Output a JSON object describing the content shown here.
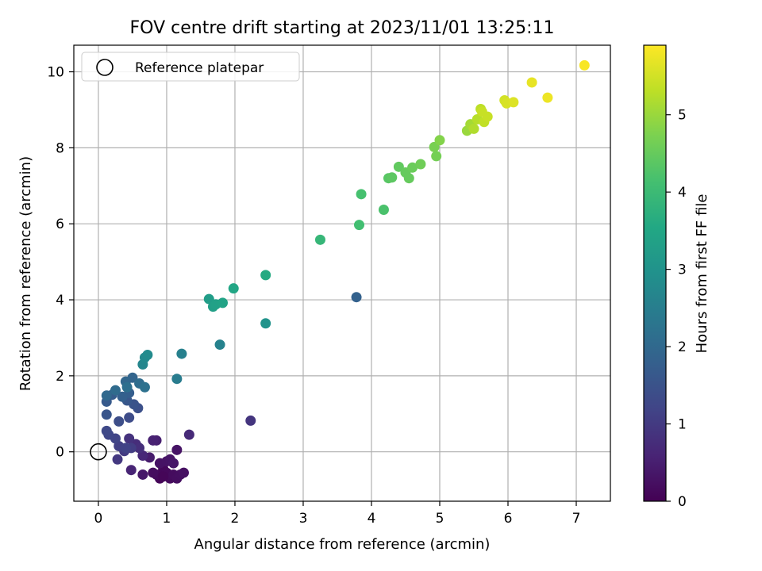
{
  "chart_data": {
    "type": "scatter",
    "title": "FOV centre drift starting at 2023/11/01 13:25:11",
    "xlabel": "Angular distance from reference (arcmin)",
    "ylabel": "Rotation from reference (arcmin)",
    "xlim": [
      -0.36,
      7.5
    ],
    "ylim": [
      -1.3,
      10.7
    ],
    "xticks": [
      0,
      1,
      2,
      3,
      4,
      5,
      6,
      7
    ],
    "yticks": [
      0,
      2,
      4,
      6,
      8,
      10
    ],
    "grid": true,
    "legend": {
      "placement": "top-left",
      "entries": [
        "Reference platepar"
      ]
    },
    "reference_point": {
      "x": 0,
      "y": 0,
      "marker": "open-circle"
    },
    "colorbar": {
      "label": "Hours from first FF file",
      "colormap": "viridis",
      "range": [
        0,
        5.9
      ],
      "ticks": [
        0,
        1,
        2,
        3,
        4,
        5
      ]
    },
    "series": [
      {
        "columns": [
          "x",
          "y",
          "hours"
        ],
        "points": [
          [
            0.9,
            -0.7,
            0.05
          ],
          [
            0.95,
            -0.45,
            0.1
          ],
          [
            1.0,
            -0.55,
            0.12
          ],
          [
            1.05,
            -0.7,
            0.15
          ],
          [
            1.1,
            -0.6,
            0.18
          ],
          [
            1.15,
            -0.7,
            0.2
          ],
          [
            1.2,
            -0.6,
            0.22
          ],
          [
            1.25,
            -0.55,
            0.25
          ],
          [
            0.85,
            -0.6,
            0.15
          ],
          [
            0.8,
            -0.55,
            0.2
          ],
          [
            0.9,
            -0.3,
            0.28
          ],
          [
            1.0,
            -0.25,
            0.3
          ],
          [
            1.05,
            -0.2,
            0.32
          ],
          [
            1.1,
            -0.3,
            0.35
          ],
          [
            0.95,
            -0.65,
            0.08
          ],
          [
            1.15,
            0.05,
            0.3
          ],
          [
            0.65,
            -0.6,
            0.4
          ],
          [
            0.75,
            -0.15,
            0.45
          ],
          [
            0.85,
            0.3,
            0.5
          ],
          [
            0.8,
            0.3,
            0.55
          ],
          [
            0.48,
            -0.48,
            0.6
          ],
          [
            0.65,
            -0.1,
            0.65
          ],
          [
            1.33,
            0.45,
            0.7
          ],
          [
            0.55,
            0.2,
            0.75
          ],
          [
            0.6,
            0.1,
            0.8
          ],
          [
            0.45,
            0.35,
            0.85
          ],
          [
            2.23,
            0.82,
            0.9
          ],
          [
            0.28,
            -0.2,
            0.95
          ],
          [
            0.38,
            0.02,
            1.0
          ],
          [
            0.48,
            0.1,
            1.05
          ],
          [
            0.3,
            0.15,
            1.1
          ],
          [
            0.4,
            0.1,
            1.15
          ],
          [
            0.25,
            0.35,
            1.2
          ],
          [
            0.15,
            0.45,
            1.25
          ],
          [
            0.12,
            0.55,
            1.3
          ],
          [
            0.45,
            0.9,
            1.35
          ],
          [
            0.3,
            0.8,
            1.4
          ],
          [
            0.58,
            1.15,
            1.45
          ],
          [
            0.52,
            1.25,
            1.5
          ],
          [
            0.12,
            0.98,
            1.55
          ],
          [
            0.42,
            1.35,
            1.6
          ],
          [
            0.12,
            1.32,
            1.65
          ],
          [
            0.2,
            1.5,
            1.7
          ],
          [
            0.45,
            1.55,
            1.75
          ],
          [
            0.35,
            1.45,
            1.8
          ],
          [
            3.78,
            4.07,
            1.85
          ],
          [
            0.5,
            1.95,
            1.9
          ],
          [
            0.4,
            1.85,
            1.95
          ],
          [
            0.12,
            1.48,
            2.0
          ],
          [
            0.25,
            1.62,
            2.05
          ],
          [
            0.6,
            1.8,
            2.1
          ],
          [
            0.42,
            1.7,
            2.15
          ],
          [
            0.68,
            1.7,
            2.2
          ],
          [
            1.15,
            1.92,
            2.45
          ],
          [
            1.22,
            2.58,
            2.55
          ],
          [
            1.78,
            2.82,
            2.6
          ],
          [
            0.65,
            2.3,
            2.7
          ],
          [
            0.68,
            2.48,
            2.75
          ],
          [
            0.72,
            2.55,
            2.8
          ],
          [
            2.45,
            3.38,
            3.0
          ],
          [
            1.62,
            4.02,
            3.25
          ],
          [
            1.68,
            3.82,
            3.3
          ],
          [
            1.72,
            3.88,
            3.35
          ],
          [
            1.82,
            3.92,
            3.4
          ],
          [
            1.98,
            4.3,
            3.5
          ],
          [
            2.45,
            4.65,
            3.6
          ],
          [
            3.25,
            5.58,
            3.9
          ],
          [
            3.82,
            5.97,
            4.1
          ],
          [
            3.85,
            6.78,
            4.15
          ],
          [
            4.18,
            6.37,
            4.2
          ],
          [
            4.25,
            7.2,
            4.35
          ],
          [
            4.3,
            7.22,
            4.4
          ],
          [
            4.4,
            7.5,
            4.45
          ],
          [
            4.5,
            7.35,
            4.5
          ],
          [
            4.55,
            7.2,
            4.5
          ],
          [
            4.6,
            7.48,
            4.55
          ],
          [
            4.72,
            7.57,
            4.6
          ],
          [
            4.92,
            8.02,
            4.7
          ],
          [
            4.95,
            7.78,
            4.65
          ],
          [
            5.0,
            8.2,
            4.8
          ],
          [
            5.4,
            8.45,
            5.0
          ],
          [
            5.45,
            8.62,
            5.1
          ],
          [
            5.5,
            8.5,
            5.2
          ],
          [
            5.55,
            8.75,
            5.25
          ],
          [
            5.6,
            9.02,
            5.3
          ],
          [
            5.65,
            8.68,
            5.35
          ],
          [
            5.7,
            8.82,
            5.4
          ],
          [
            5.62,
            8.95,
            5.4
          ],
          [
            5.95,
            9.25,
            5.5
          ],
          [
            5.98,
            9.17,
            5.55
          ],
          [
            6.08,
            9.2,
            5.6
          ],
          [
            6.35,
            9.72,
            5.7
          ],
          [
            6.58,
            9.32,
            5.75
          ],
          [
            7.12,
            10.17,
            5.85
          ]
        ]
      }
    ]
  }
}
